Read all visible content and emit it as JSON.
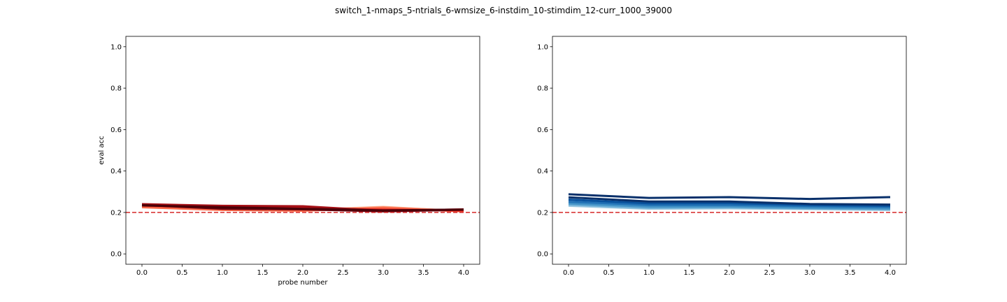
{
  "figure": {
    "title": "switch_1-nmaps_5-ntrials_6-wmsize_6-instdim_10-stimdim_12-curr_1000_39000"
  },
  "chart_data": [
    {
      "type": "line",
      "title": "",
      "xlabel": "probe number",
      "ylabel": "eval acc",
      "xlim": [
        -0.2,
        4.2
      ],
      "ylim": [
        -0.05,
        1.05
      ],
      "xticks": [
        0.0,
        0.5,
        1.0,
        1.5,
        2.0,
        2.5,
        3.0,
        3.5,
        4.0
      ],
      "xtick_labels": [
        "0.0",
        "0.5",
        "1.0",
        "1.5",
        "2.0",
        "2.5",
        "3.0",
        "3.5",
        "4.0"
      ],
      "yticks": [
        0.0,
        0.2,
        0.4,
        0.6,
        0.8,
        1.0
      ],
      "ytick_labels": [
        "0.0",
        "0.2",
        "0.4",
        "0.6",
        "0.8",
        "1.0"
      ],
      "grid": false,
      "reference_line": {
        "y": 0.2,
        "color": "#d62728",
        "style": "dashed"
      },
      "x": [
        0,
        1,
        2,
        3,
        4
      ],
      "series": [
        {
          "color": "#fcbba1",
          "values": [
            0.228,
            0.213,
            0.212,
            0.227,
            0.205
          ]
        },
        {
          "color": "#fc9272",
          "values": [
            0.232,
            0.215,
            0.21,
            0.225,
            0.207
          ]
        },
        {
          "color": "#fb6a4a",
          "values": [
            0.225,
            0.212,
            0.208,
            0.222,
            0.205
          ]
        },
        {
          "color": "#ef3b2c",
          "values": [
            0.233,
            0.22,
            0.214,
            0.215,
            0.208
          ]
        },
        {
          "color": "#cb181d",
          "values": [
            0.238,
            0.228,
            0.222,
            0.212,
            0.212
          ]
        },
        {
          "color": "#a50f15",
          "values": [
            0.24,
            0.232,
            0.23,
            0.208,
            0.215
          ]
        },
        {
          "color": "#67000d",
          "values": [
            0.236,
            0.218,
            0.215,
            0.205,
            0.213
          ]
        },
        {
          "color": "#4a0008",
          "values": [
            0.234,
            0.225,
            0.218,
            0.21,
            0.214
          ]
        }
      ]
    },
    {
      "type": "line",
      "title": "",
      "xlabel": "",
      "ylabel": "",
      "xlim": [
        -0.2,
        4.2
      ],
      "ylim": [
        -0.05,
        1.05
      ],
      "xticks": [
        0.0,
        0.5,
        1.0,
        1.5,
        2.0,
        2.5,
        3.0,
        3.5,
        4.0
      ],
      "xtick_labels": [
        "0.0",
        "0.5",
        "1.0",
        "1.5",
        "2.0",
        "2.5",
        "3.0",
        "3.5",
        "4.0"
      ],
      "yticks": [
        0.0,
        0.2,
        0.4,
        0.6,
        0.8,
        1.0
      ],
      "ytick_labels": [
        "0.0",
        "0.2",
        "0.4",
        "0.6",
        "0.8",
        "1.0"
      ],
      "grid": false,
      "reference_line": {
        "y": 0.2,
        "color": "#d62728",
        "style": "dashed"
      },
      "x": [
        0,
        1,
        2,
        3,
        4
      ],
      "series": [
        {
          "color": "#9ecae1",
          "values": [
            0.232,
            0.218,
            0.22,
            0.216,
            0.212
          ]
        },
        {
          "color": "#6baed6",
          "values": [
            0.238,
            0.222,
            0.224,
            0.219,
            0.215
          ]
        },
        {
          "color": "#4292c6",
          "values": [
            0.244,
            0.228,
            0.229,
            0.223,
            0.219
          ]
        },
        {
          "color": "#2171b5",
          "values": [
            0.252,
            0.236,
            0.236,
            0.23,
            0.226
          ]
        },
        {
          "color": "#08519c",
          "values": [
            0.262,
            0.244,
            0.245,
            0.236,
            0.232
          ]
        },
        {
          "color": "#08306b",
          "values": [
            0.273,
            0.253,
            0.253,
            0.241,
            0.238
          ]
        },
        {
          "color": "#08306b",
          "values": [
            0.288,
            0.27,
            0.274,
            0.265,
            0.274
          ]
        }
      ]
    }
  ]
}
